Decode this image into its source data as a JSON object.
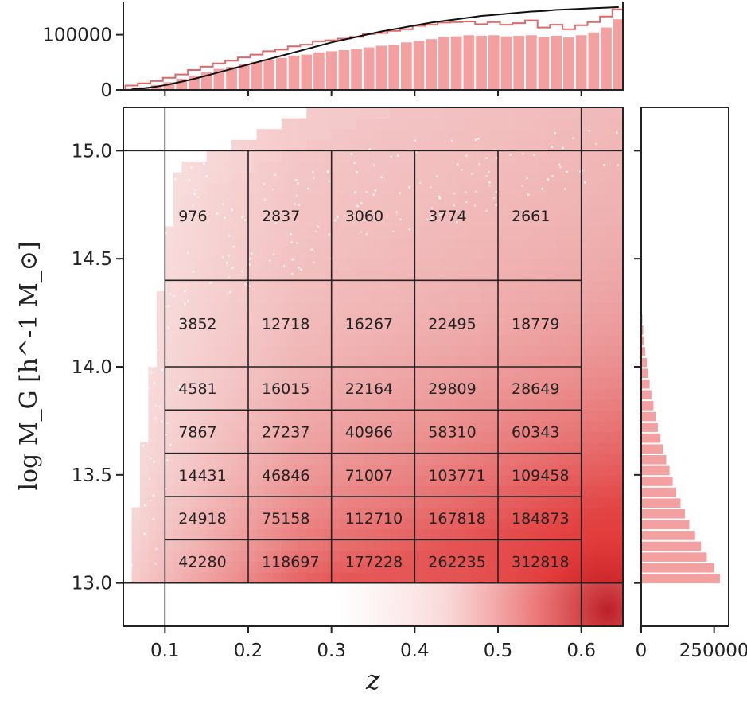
{
  "chart_data": [
    {
      "type": "heatmap",
      "xlabel": "z",
      "ylabel": "log M_G [h^-1 M_⊙]",
      "xlim": [
        0.05,
        0.65
      ],
      "ylim": [
        12.8,
        15.2
      ],
      "x_ticks": [
        "0.1",
        "0.2",
        "0.3",
        "0.4",
        "0.5",
        "0.6"
      ],
      "y_ticks": [
        "13.0",
        "13.5",
        "14.0",
        "14.5",
        "15.0"
      ],
      "colormap": "white-to-red density",
      "bin_edges_z": [
        0.1,
        0.2,
        0.3,
        0.4,
        0.5,
        0.6
      ],
      "bin_edges_logM": [
        13.0,
        13.2,
        13.4,
        13.6,
        13.8,
        14.0,
        14.4,
        15.0
      ],
      "cell_counts_rows_high_to_low_mass": [
        [
          "976",
          "2837",
          "3060",
          "3774",
          "2661"
        ],
        [
          "3852",
          "12718",
          "16267",
          "22495",
          "18779"
        ],
        [
          "4581",
          "16015",
          "22164",
          "29809",
          "28649"
        ],
        [
          "7867",
          "27237",
          "40966",
          "58310",
          "60343"
        ],
        [
          "14431",
          "46846",
          "71007",
          "103771",
          "109458"
        ],
        [
          "24918",
          "75158",
          "112710",
          "167818",
          "184873"
        ],
        [
          "42280",
          "118697",
          "177228",
          "262235",
          "312818"
        ]
      ]
    },
    {
      "type": "bar",
      "panel": "top marginal histogram of z",
      "y_ticks": [
        "0",
        "100000"
      ],
      "ylim": [
        0,
        160000
      ],
      "x": [
        0.06,
        0.075,
        0.09,
        0.105,
        0.12,
        0.135,
        0.15,
        0.165,
        0.18,
        0.195,
        0.21,
        0.225,
        0.24,
        0.255,
        0.27,
        0.285,
        0.3,
        0.315,
        0.33,
        0.345,
        0.36,
        0.375,
        0.39,
        0.405,
        0.42,
        0.435,
        0.45,
        0.465,
        0.48,
        0.495,
        0.51,
        0.525,
        0.54,
        0.555,
        0.57,
        0.585,
        0.6,
        0.615,
        0.63,
        0.645
      ],
      "values": [
        2000,
        5000,
        9000,
        14000,
        20000,
        26000,
        32000,
        38000,
        42000,
        47000,
        51000,
        55000,
        58000,
        62000,
        64000,
        68000,
        70000,
        72000,
        74000,
        77000,
        80000,
        82000,
        86000,
        89000,
        92000,
        96000,
        97000,
        99000,
        98000,
        99000,
        97000,
        98000,
        99000,
        96000,
        98000,
        95000,
        99000,
        104000,
        113000,
        128000
      ],
      "step_outline": [
        8000,
        12000,
        16000,
        22000,
        28000,
        36000,
        42000,
        48000,
        53000,
        59000,
        64000,
        70000,
        73000,
        79000,
        82000,
        88000,
        90000,
        93000,
        96000,
        101000,
        103000,
        107000,
        110000,
        116000,
        118000,
        122000,
        123000,
        124000,
        119000,
        123000,
        118000,
        121000,
        126000,
        113000,
        118000,
        110000,
        117000,
        123000,
        133000,
        146000
      ],
      "fit_curve": [
        1000,
        3000,
        6000,
        10000,
        15000,
        20000,
        26000,
        32000,
        38000,
        44000,
        50000,
        56000,
        62000,
        68000,
        74000,
        80000,
        86000,
        91000,
        96000,
        101000,
        106000,
        110000,
        114000,
        118000,
        122000,
        125000,
        128000,
        131000,
        134000,
        136000,
        138000,
        140000,
        142000,
        143000,
        145000,
        146000,
        147000,
        148000,
        149000,
        150000
      ],
      "colors": {
        "bars": "#f2a0a0",
        "outline": "#e06767",
        "curve": "#111111"
      }
    },
    {
      "type": "bar",
      "panel": "right marginal histogram of log M_G",
      "orientation": "horizontal",
      "x_ticks": [
        "0",
        "250000"
      ],
      "xlim": [
        0,
        300000
      ],
      "y_bins_logM": [
        13.02,
        13.07,
        13.12,
        13.17,
        13.22,
        13.27,
        13.32,
        13.37,
        13.42,
        13.47,
        13.52,
        13.57,
        13.62,
        13.67,
        13.72,
        13.77,
        13.82,
        13.87,
        13.92,
        13.97,
        14.02,
        14.07,
        14.12,
        14.17,
        14.22
      ],
      "values": [
        270000,
        250000,
        225000,
        205000,
        185000,
        165000,
        150000,
        135000,
        120000,
        108000,
        97000,
        86000,
        75000,
        66000,
        57000,
        49000,
        42000,
        35000,
        29000,
        24000,
        19000,
        14000,
        10000,
        7000,
        4000
      ],
      "colors": {
        "bars": "#f2a0a0"
      }
    }
  ]
}
